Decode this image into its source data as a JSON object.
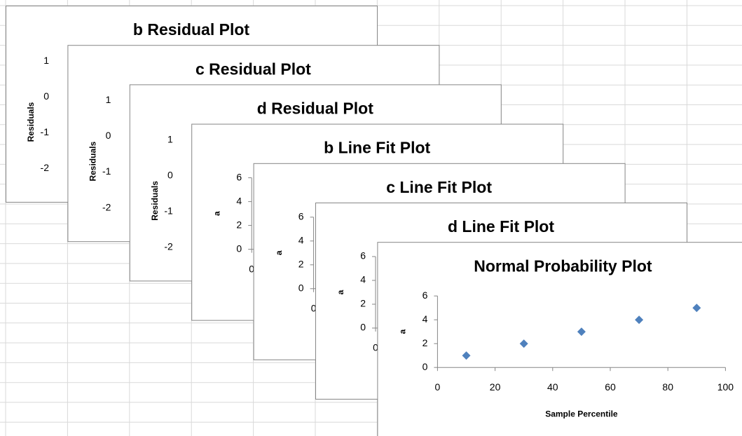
{
  "chart_data": [
    {
      "type": "residual",
      "title": "b  Residual Plot",
      "y_label": "Residuals",
      "ylim": [
        -2.6,
        1.2
      ],
      "yticks": [
        1,
        0,
        -1,
        -2
      ]
    },
    {
      "type": "residual",
      "title": "c  Residual Plot",
      "y_label": "Residuals",
      "ylim": [
        -2.6,
        1.2
      ],
      "yticks": [
        1,
        0,
        -1,
        -2
      ]
    },
    {
      "type": "residual",
      "title": "d  Residual Plot",
      "y_label": "Residuals",
      "ylim": [
        -2.6,
        1.2
      ],
      "yticks": [
        1,
        0,
        -1,
        -2
      ]
    },
    {
      "type": "linefit",
      "title": "b Line Fit  Plot",
      "y_label": "a",
      "ylim": [
        0,
        6
      ],
      "yticks": [
        6,
        4,
        2,
        0
      ],
      "xlim": [
        0,
        6
      ],
      "xticks": [
        0
      ]
    },
    {
      "type": "linefit",
      "title": "c Line Fit  Plot",
      "y_label": "a",
      "ylim": [
        0,
        6
      ],
      "yticks": [
        6,
        4,
        2,
        0
      ],
      "xlim": [
        0,
        6
      ],
      "xticks": [
        0
      ]
    },
    {
      "type": "linefit",
      "title": "d Line Fit  Plot",
      "y_label": "a",
      "ylim": [
        0,
        6
      ],
      "yticks": [
        6,
        4,
        2,
        0
      ],
      "xlim": [
        0,
        6
      ],
      "xticks": [
        0
      ]
    },
    {
      "type": "scatter",
      "title": "Normal Probability Plot",
      "y_label": "a",
      "x_label": "Sample Percentile",
      "x": [
        10,
        30,
        50,
        70,
        90
      ],
      "values": [
        1,
        2,
        3,
        4,
        5
      ],
      "color": "#4f81bd",
      "xlim": [
        0,
        100
      ],
      "xticks": [
        0,
        20,
        40,
        60,
        80,
        100
      ],
      "ylim": [
        0,
        6
      ],
      "yticks": [
        0,
        2,
        4,
        6
      ]
    }
  ]
}
